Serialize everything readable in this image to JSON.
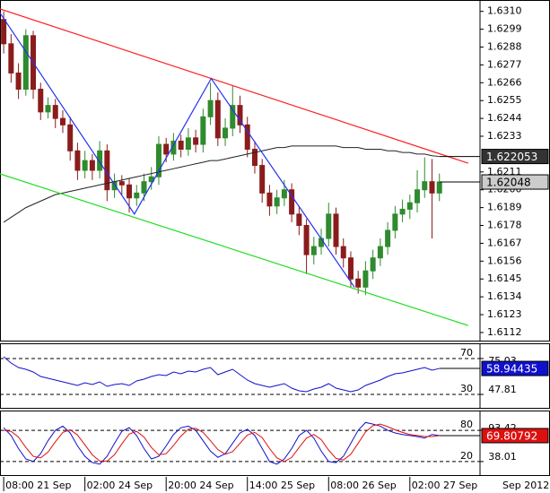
{
  "chart_data": [
    {
      "type": "candlestick",
      "xlim": [
        -0.5,
        64.5
      ],
      "ylim": [
        1.6317,
        1.6107
      ],
      "yticks": [
        {
          "value": 1.631,
          "label": "1.6310"
        },
        {
          "value": 1.6299,
          "label": "1.6299"
        },
        {
          "value": 1.6288,
          "label": "1.6288"
        },
        {
          "value": 1.6277,
          "label": "1.6277"
        },
        {
          "value": 1.6266,
          "label": "1.6266"
        },
        {
          "value": 1.6255,
          "label": "1.6255"
        },
        {
          "value": 1.6244,
          "label": "1.6244"
        },
        {
          "value": 1.6233,
          "label": "1.6233"
        },
        {
          "value": 1.6211,
          "label": "1.6211"
        },
        {
          "value": 1.62,
          "label": "1.6200"
        },
        {
          "value": 1.6189,
          "label": "1.6189"
        },
        {
          "value": 1.6178,
          "label": "1.6178"
        },
        {
          "value": 1.6167,
          "label": "1.6167"
        },
        {
          "value": 1.6156,
          "label": "1.6156"
        },
        {
          "value": 1.6145,
          "label": "1.6145"
        },
        {
          "value": 1.6134,
          "label": "1.6134"
        },
        {
          "value": 1.6123,
          "label": "1.6123"
        },
        {
          "value": 1.6112,
          "label": "1.6112"
        }
      ],
      "up_color": "#2e8b2e",
      "down_color": "#8b1c1c",
      "open": [
        1.6305,
        1.629,
        1.6272,
        1.6262,
        1.6295,
        1.6262,
        1.6248,
        1.6252,
        1.6244,
        1.624,
        1.6224,
        1.6212,
        1.6218,
        1.6212,
        1.6224,
        1.62,
        1.6205,
        1.6203,
        1.6195,
        1.6198,
        1.6205,
        1.6208,
        1.6228,
        1.6222,
        1.623,
        1.6225,
        1.6232,
        1.6228,
        1.6245,
        1.6255,
        1.6232,
        1.6238,
        1.6252,
        1.624,
        1.6225,
        1.6215,
        1.6198,
        1.619,
        1.6195,
        1.62,
        1.6185,
        1.6178,
        1.616,
        1.6165,
        1.617,
        1.6185,
        1.6165,
        1.6158,
        1.6145,
        1.614,
        1.615,
        1.6158,
        1.6165,
        1.6175,
        1.6185,
        1.6188,
        1.6192,
        1.62,
        1.6205,
        1.6198
      ],
      "high": [
        1.631,
        1.6296,
        1.6278,
        1.6299,
        1.6298,
        1.6266,
        1.6257,
        1.6256,
        1.6249,
        1.6245,
        1.6229,
        1.6224,
        1.6222,
        1.623,
        1.6228,
        1.621,
        1.6209,
        1.6207,
        1.6203,
        1.621,
        1.6214,
        1.6233,
        1.6232,
        1.6235,
        1.6234,
        1.6238,
        1.6237,
        1.625,
        1.6266,
        1.626,
        1.6244,
        1.6264,
        1.6258,
        1.6245,
        1.623,
        1.6219,
        1.6203,
        1.62,
        1.6206,
        1.6204,
        1.619,
        1.6182,
        1.6171,
        1.6176,
        1.6192,
        1.6189,
        1.617,
        1.6162,
        1.615,
        1.6156,
        1.6163,
        1.617,
        1.618,
        1.619,
        1.6194,
        1.6197,
        1.6212,
        1.622,
        1.6219,
        1.621
      ],
      "low": [
        1.6284,
        1.6266,
        1.6256,
        1.6258,
        1.6256,
        1.6243,
        1.6244,
        1.6238,
        1.6235,
        1.6218,
        1.6206,
        1.6207,
        1.6206,
        1.6207,
        1.6193,
        1.6195,
        1.6197,
        1.6186,
        1.619,
        1.6193,
        1.62,
        1.6203,
        1.6217,
        1.6218,
        1.622,
        1.6221,
        1.6223,
        1.6223,
        1.624,
        1.6227,
        1.6227,
        1.6233,
        1.6235,
        1.622,
        1.621,
        1.6192,
        1.6184,
        1.6185,
        1.619,
        1.618,
        1.6172,
        1.6148,
        1.6154,
        1.616,
        1.6165,
        1.616,
        1.6152,
        1.614,
        1.6136,
        1.6135,
        1.6145,
        1.6153,
        1.616,
        1.617,
        1.618,
        1.6182,
        1.6186,
        1.6195,
        1.617,
        1.6193
      ],
      "close": [
        1.629,
        1.6272,
        1.6262,
        1.6295,
        1.6262,
        1.6248,
        1.6252,
        1.6244,
        1.624,
        1.6224,
        1.6212,
        1.6218,
        1.6212,
        1.6224,
        1.62,
        1.6205,
        1.6203,
        1.6195,
        1.6198,
        1.6205,
        1.6208,
        1.6228,
        1.6222,
        1.623,
        1.6225,
        1.6232,
        1.6228,
        1.6245,
        1.6255,
        1.6232,
        1.6238,
        1.6252,
        1.624,
        1.6225,
        1.6215,
        1.6198,
        1.619,
        1.6195,
        1.62,
        1.6185,
        1.6178,
        1.616,
        1.6165,
        1.617,
        1.6185,
        1.6165,
        1.6158,
        1.6145,
        1.614,
        1.615,
        1.6158,
        1.6165,
        1.6175,
        1.6185,
        1.6188,
        1.6192,
        1.62,
        1.6205,
        1.6198,
        1.62048
      ],
      "overlay": {
        "color": "#222222",
        "values": [
          1.618,
          1.6183,
          1.6186,
          1.6189,
          1.6191,
          1.6193,
          1.6195,
          1.6197,
          1.6198,
          1.6199,
          1.62,
          1.6201,
          1.6202,
          1.6203,
          1.6204,
          1.6205,
          1.6206,
          1.6207,
          1.6208,
          1.6209,
          1.621,
          1.6211,
          1.6212,
          1.6213,
          1.6214,
          1.6215,
          1.6216,
          1.6217,
          1.6218,
          1.6218,
          1.6219,
          1.622,
          1.6221,
          1.6222,
          1.6223,
          1.6224,
          1.6225,
          1.6226,
          1.6226,
          1.6227,
          1.6227,
          1.6227,
          1.6227,
          1.6227,
          1.6227,
          1.6227,
          1.6226,
          1.6226,
          1.6226,
          1.6225,
          1.6225,
          1.6225,
          1.6224,
          1.6224,
          1.6223,
          1.6223,
          1.6222,
          1.6222,
          1.6221,
          1.622053
        ]
      },
      "lines": [
        {
          "color": "#ff2020",
          "x": [
            -0.5,
            62.9
          ],
          "y": [
            1.63115,
            1.62164
          ]
        },
        {
          "color": "#22dd22",
          "x": [
            -0.5,
            62.9
          ],
          "y": [
            1.62098,
            1.61163
          ]
        },
        {
          "color": "#2233ee",
          "x": [
            -0.5,
            17.7,
            28.1,
            47.5
          ],
          "y": [
            1.6309,
            1.6185,
            1.62686,
            1.61399
          ]
        }
      ]
    },
    {
      "type": "line",
      "xlim": [
        -0.5,
        64.5
      ],
      "ylim": [
        87,
        15
      ],
      "yticks": [
        70,
        30
      ],
      "range_labels": [
        "75.03",
        "47.81"
      ],
      "series": [
        {
          "color": "#1010cc",
          "values": [
            72,
            65,
            60,
            58,
            55,
            50,
            48,
            46,
            44,
            42,
            40,
            43,
            41,
            44,
            39,
            41,
            42,
            40,
            45,
            47,
            50,
            52,
            51,
            55,
            53,
            56,
            55,
            58,
            60,
            52,
            55,
            58,
            52,
            46,
            42,
            40,
            38,
            40,
            42,
            37,
            34,
            33,
            36,
            38,
            42,
            37,
            35,
            33,
            35,
            40,
            43,
            46,
            50,
            53,
            54,
            56,
            58,
            60,
            57,
            58.94435
          ]
        }
      ]
    },
    {
      "type": "line",
      "xlim": [
        -0.5,
        64.5
      ],
      "ylim": [
        118,
        -6
      ],
      "yticks": [
        80,
        20
      ],
      "range_labels": [
        "93.42",
        "38.01"
      ],
      "series": [
        {
          "color": "#1010cc",
          "values": [
            85,
            70,
            45,
            25,
            20,
            35,
            60,
            80,
            88,
            75,
            50,
            30,
            18,
            15,
            30,
            55,
            78,
            85,
            70,
            45,
            25,
            30,
            50,
            72,
            85,
            88,
            80,
            60,
            40,
            28,
            35,
            55,
            75,
            82,
            70,
            45,
            20,
            15,
            25,
            45,
            70,
            80,
            65,
            40,
            20,
            18,
            30,
            55,
            80,
            95,
            92,
            88,
            80,
            75,
            72,
            70,
            68,
            65,
            72,
            70
          ]
        },
        {
          "color": "#dd1010",
          "values": [
            80,
            78,
            67,
            47,
            30,
            27,
            38,
            58,
            76,
            81,
            71,
            52,
            33,
            21,
            21,
            33,
            54,
            73,
            78,
            67,
            47,
            33,
            35,
            51,
            69,
            82,
            84,
            76,
            60,
            43,
            34,
            39,
            55,
            71,
            76,
            66,
            45,
            27,
            20,
            28,
            47,
            65,
            72,
            62,
            42,
            26,
            23,
            34,
            55,
            77,
            89,
            92,
            87,
            81,
            76,
            72,
            70,
            68,
            68,
            69.80792
          ]
        }
      ],
      "xlabels": {
        "index": [
          0,
          11,
          22,
          33,
          44,
          55
        ],
        "labels": [
          "08:00 21 Sep",
          "02:00 24 Sep",
          "20:00 24 Sep",
          "14:00 25 Sep",
          "08:00 26 Sep",
          "02:00 27 Sep"
        ]
      },
      "period": "Sep 2012"
    }
  ]
}
